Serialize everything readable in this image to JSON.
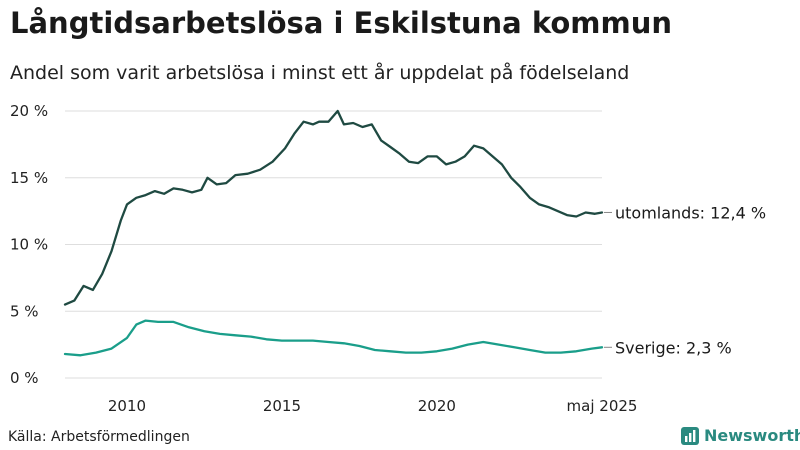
{
  "title": "Långtidsarbetslösa i Eskilstuna kommun",
  "subtitle": "Andel som varit arbetslösa i minst ett år uppdelat på födelseland",
  "source": "Källa: Arbetsförmedlingen",
  "brand": {
    "name": "Newsworthy",
    "color": "#2a8a80"
  },
  "chart_data": {
    "type": "line",
    "title": "Långtidsarbetslösa i Eskilstuna kommun",
    "subtitle": "Andel som varit arbetslösa i minst ett år uppdelat på födelseland",
    "xlim": [
      2008.0,
      2025.33
    ],
    "ylim": [
      0,
      20
    ],
    "yticks": [
      0,
      5,
      10,
      15,
      20
    ],
    "ytick_labels": [
      "0 %",
      "5 %",
      "10 %",
      "15 %",
      "20 %"
    ],
    "xticks": [
      2010,
      2015,
      2020,
      2025.33
    ],
    "xtick_labels": [
      "2010",
      "2015",
      "2020",
      "maj 2025"
    ],
    "grid": true,
    "series": [
      {
        "name": "utomlands",
        "label": "utomlands: 12,4 %",
        "color": "#1f4a42",
        "x": [
          2008.0,
          2008.3,
          2008.6,
          2008.9,
          2009.2,
          2009.5,
          2009.8,
          2010.0,
          2010.3,
          2010.6,
          2010.9,
          2011.2,
          2011.5,
          2011.8,
          2012.1,
          2012.4,
          2012.6,
          2012.9,
          2013.2,
          2013.5,
          2013.9,
          2014.3,
          2014.7,
          2015.1,
          2015.4,
          2015.7,
          2016.0,
          2016.2,
          2016.5,
          2016.8,
          2017.0,
          2017.3,
          2017.6,
          2017.9,
          2018.2,
          2018.5,
          2018.8,
          2019.1,
          2019.4,
          2019.7,
          2020.0,
          2020.3,
          2020.6,
          2020.9,
          2021.2,
          2021.5,
          2021.8,
          2022.1,
          2022.4,
          2022.7,
          2023.0,
          2023.3,
          2023.6,
          2023.9,
          2024.2,
          2024.5,
          2024.8,
          2025.1,
          2025.33
        ],
        "values": [
          5.5,
          5.8,
          6.9,
          6.6,
          7.8,
          9.5,
          11.8,
          13.0,
          13.5,
          13.7,
          14.0,
          13.8,
          14.2,
          14.1,
          13.9,
          14.1,
          15.0,
          14.5,
          14.6,
          15.2,
          15.3,
          15.6,
          16.2,
          17.2,
          18.3,
          19.2,
          19.0,
          19.2,
          19.2,
          20.0,
          19.0,
          19.1,
          18.8,
          19.0,
          17.8,
          17.3,
          16.8,
          16.2,
          16.1,
          16.6,
          16.6,
          16.0,
          16.2,
          16.6,
          17.4,
          17.2,
          16.6,
          16.0,
          15.0,
          14.3,
          13.5,
          13.0,
          12.8,
          12.5,
          12.2,
          12.1,
          12.4,
          12.3,
          12.4
        ]
      },
      {
        "name": "Sverige",
        "label": "Sverige:  2,3 %",
        "color": "#1a9e8a",
        "x": [
          2008.0,
          2008.5,
          2009.0,
          2009.5,
          2010.0,
          2010.3,
          2010.6,
          2011.0,
          2011.5,
          2012.0,
          2012.5,
          2013.0,
          2013.5,
          2014.0,
          2014.5,
          2015.0,
          2015.5,
          2016.0,
          2016.5,
          2017.0,
          2017.5,
          2018.0,
          2018.5,
          2019.0,
          2019.5,
          2020.0,
          2020.5,
          2021.0,
          2021.5,
          2022.0,
          2022.5,
          2023.0,
          2023.5,
          2024.0,
          2024.5,
          2025.0,
          2025.33
        ],
        "values": [
          1.8,
          1.7,
          1.9,
          2.2,
          3.0,
          4.0,
          4.3,
          4.2,
          4.2,
          3.8,
          3.5,
          3.3,
          3.2,
          3.1,
          2.9,
          2.8,
          2.8,
          2.8,
          2.7,
          2.6,
          2.4,
          2.1,
          2.0,
          1.9,
          1.9,
          2.0,
          2.2,
          2.5,
          2.7,
          2.5,
          2.3,
          2.1,
          1.9,
          1.9,
          2.0,
          2.2,
          2.3
        ]
      }
    ]
  }
}
